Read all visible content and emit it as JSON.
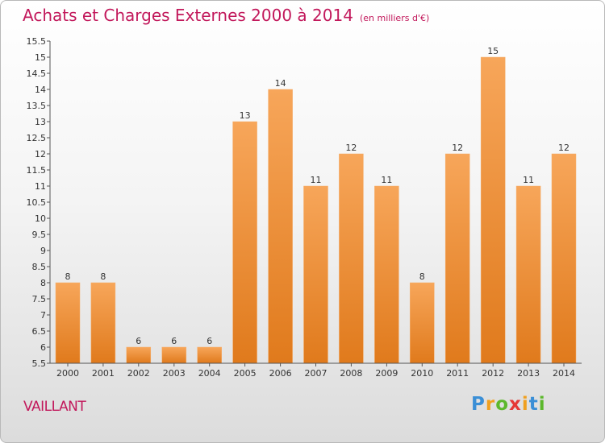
{
  "chart_data": {
    "type": "bar",
    "title": "Achats et Charges Externes 2000 à 2014",
    "subtitle": "(en milliers d'€)",
    "categories": [
      "2000",
      "2001",
      "2002",
      "2003",
      "2004",
      "2005",
      "2006",
      "2007",
      "2008",
      "2009",
      "2010",
      "2011",
      "2012",
      "2013",
      "2014"
    ],
    "values": [
      8,
      8,
      6,
      6,
      6,
      13,
      14,
      11,
      12,
      11,
      8,
      12,
      15,
      11,
      12
    ],
    "xlabel": "",
    "ylabel": "",
    "ylim": [
      5.5,
      15.5
    ],
    "ytick_step": 0.5,
    "grid": false,
    "colors": {
      "bar_light": "#f7a65a",
      "bar_dark": "#e07a1c",
      "title": "#c2185b"
    }
  },
  "footer": {
    "commune": "VAILLANT"
  },
  "logo": {
    "letters": [
      "P",
      "r",
      "o",
      "x",
      "i",
      "t",
      "i"
    ],
    "colors": [
      "#3b8fd6",
      "#f0a020",
      "#5cb82c",
      "#e53935",
      "#f0a020",
      "#3b8fd6",
      "#5cb82c"
    ]
  }
}
